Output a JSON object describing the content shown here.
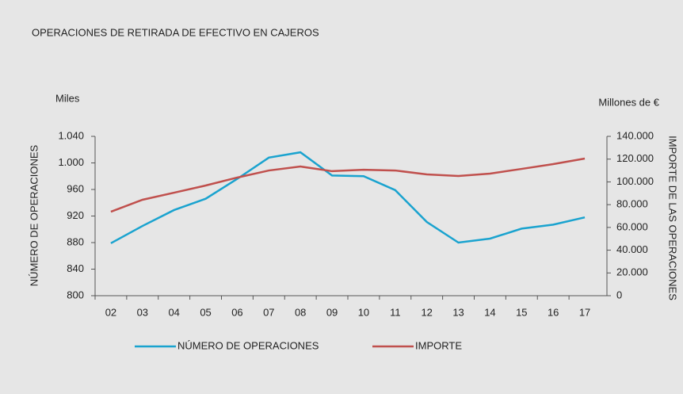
{
  "chart_data": {
    "type": "line",
    "title": "OPERACIONES DE RETIRADA DE EFECTIVO EN CAJEROS",
    "y_unit": "Miles",
    "y2_unit": "Millones de €",
    "y_label": "NÚMERO DE OPERACIONES",
    "y2_label": "IMPORTE DE LAS OPERACIONES",
    "categories": [
      "02",
      "03",
      "04",
      "05",
      "06",
      "07",
      "08",
      "09",
      "10",
      "11",
      "12",
      "13",
      "14",
      "15",
      "16",
      "17"
    ],
    "series": [
      {
        "name": "NÚMERO DE OPERACIONES",
        "color": "#1aa3cf",
        "axis": "y",
        "values": [
          879,
          905,
          929,
          946,
          976,
          1008,
          1016,
          981,
          980,
          959,
          911,
          880,
          886,
          901,
          907,
          918
        ]
      },
      {
        "name": "IMPORTE",
        "color": "#c0504d",
        "axis": "y2",
        "values": [
          73800,
          84300,
          90500,
          96800,
          103800,
          110000,
          113500,
          109400,
          110700,
          110000,
          106600,
          105200,
          107300,
          111400,
          115600,
          120500
        ]
      }
    ],
    "ylim": [
      800,
      1040
    ],
    "yticks": [
      800,
      840,
      880,
      920,
      960,
      {
        "value": 1000,
        "label": "1.000"
      },
      {
        "value": 1040,
        "label": "1.040"
      }
    ],
    "y2lim": [
      0,
      140000
    ],
    "y2ticks": [
      0,
      {
        "value": 20000,
        "label": "20.000"
      },
      {
        "value": 40000,
        "label": "40.000"
      },
      {
        "value": 60000,
        "label": "60.000"
      },
      {
        "value": 80000,
        "label": "80.000"
      },
      {
        "value": 100000,
        "label": "100.000"
      },
      {
        "value": 120000,
        "label": "120.000"
      },
      {
        "value": 140000,
        "label": "140.000"
      }
    ],
    "legend": "bottom"
  }
}
